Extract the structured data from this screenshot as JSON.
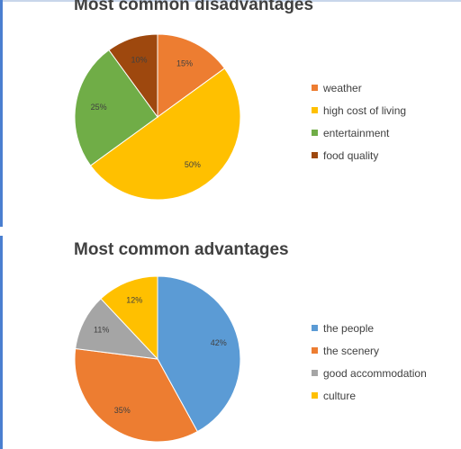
{
  "chart_data": [
    {
      "type": "pie",
      "title": "Most common disadvantages",
      "categories": [
        "weather",
        "high cost of living",
        "entertainment",
        "food quality"
      ],
      "values": [
        15,
        50,
        25,
        10
      ],
      "value_labels": [
        "15%",
        "50%",
        "25%",
        "10%"
      ],
      "colors": [
        "#ed7d31",
        "#ffc000",
        "#70ad47",
        "#9e480e"
      ],
      "legend": "right"
    },
    {
      "type": "pie",
      "title": "Most common advantages",
      "categories": [
        "the people",
        "the scenery",
        "good accommodation",
        "culture"
      ],
      "values": [
        42,
        35,
        11,
        12
      ],
      "value_labels": [
        "42%",
        "35%",
        "11%",
        "12%"
      ],
      "colors": [
        "#5b9bd5",
        "#ed7d31",
        "#a5a5a5",
        "#ffc000"
      ],
      "legend": "right"
    }
  ]
}
